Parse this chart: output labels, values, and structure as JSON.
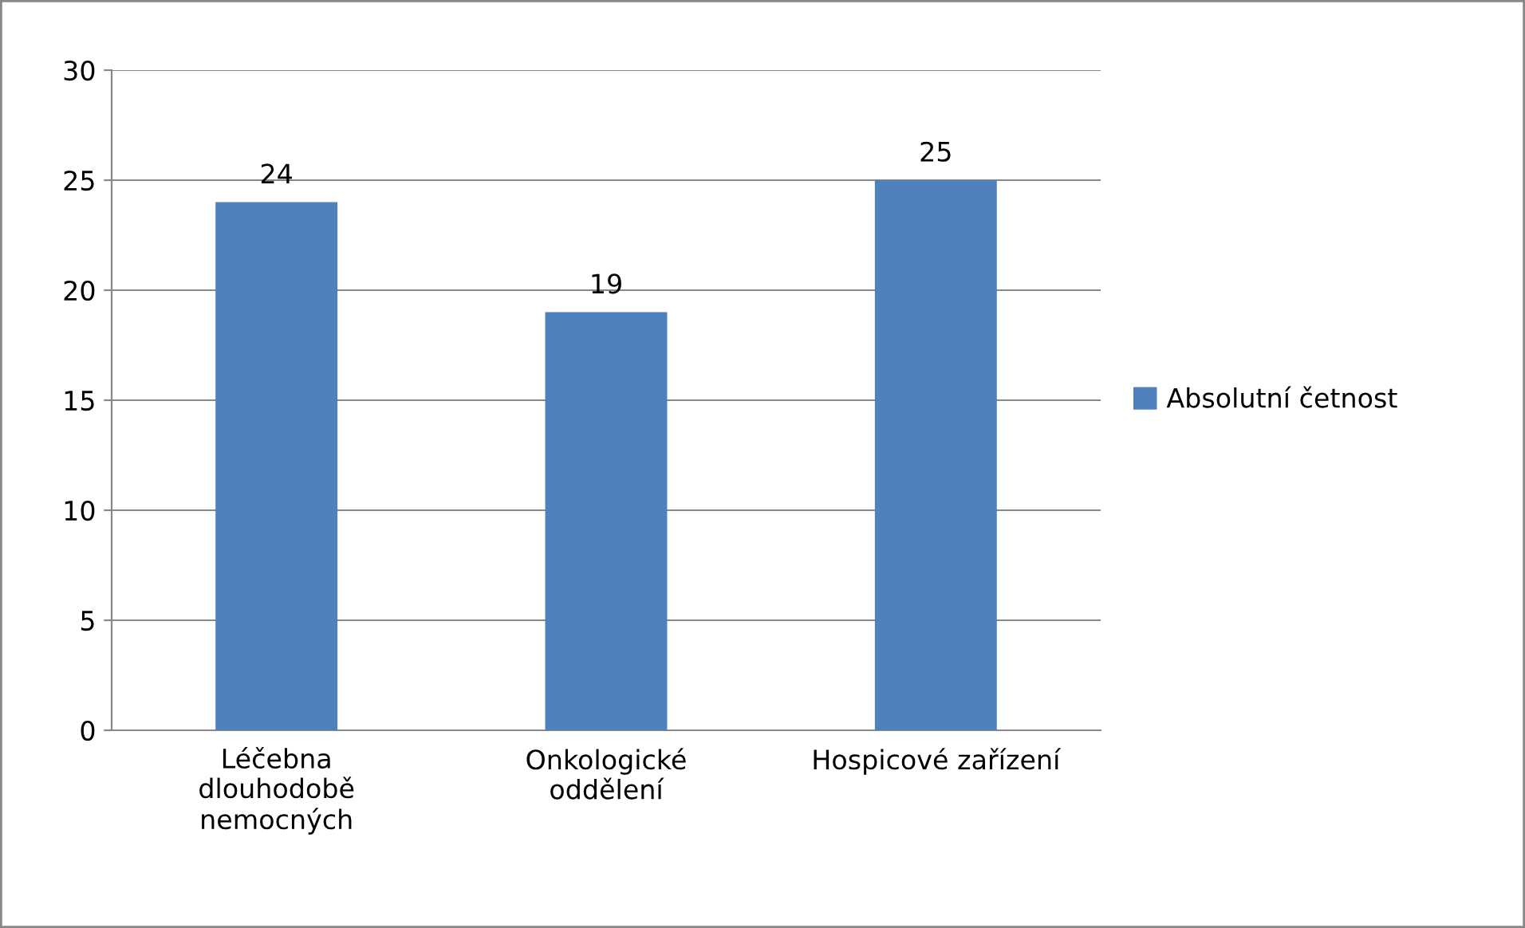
{
  "chart_data": {
    "type": "bar",
    "categories": [
      "Léčebna\ndlouhodobě\nnemocných",
      "Onkologické\noddělení",
      "Hospicové zařízení"
    ],
    "series": [
      {
        "name": "Absolutní četnost",
        "color": "#4f81bd",
        "values": [
          24,
          19,
          25
        ]
      }
    ],
    "ylim": [
      0,
      30
    ],
    "yticks": [
      0,
      5,
      10,
      15,
      20,
      25,
      30
    ],
    "grid": "y",
    "legend": "right",
    "data_labels": true
  }
}
